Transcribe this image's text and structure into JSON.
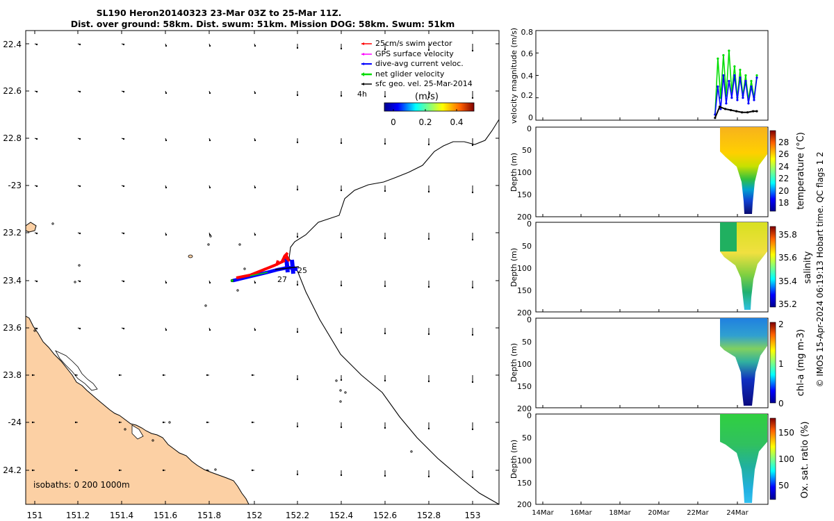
{
  "title_line1": "SL190 Heron20140323 23-Mar 03Z to 25-Mar 11Z.",
  "title_line2": "Dist. over ground: 58km. Dist. swum: 51km. Mission DOG: 58km. Swum: 51km",
  "copyright": "© IMOS 15-Apr-2024 06:19:13 Hobart time. QC flags 1  2",
  "map": {
    "lon_ticks": [
      "151",
      "151.2",
      "151.4",
      "151.6",
      "151.8",
      "152",
      "152.2",
      "152.4",
      "152.6",
      "152.8",
      "153"
    ],
    "lat_ticks": [
      "22.4",
      "22.6",
      "22.8",
      "-23",
      "23.2",
      "23.4",
      "23.6",
      "23.8",
      "-24",
      "24.2"
    ],
    "isobaths_label": "isobaths: 0   200  1000m",
    "legend": [
      {
        "label": "25cm/s swim vector",
        "color": "#ff0000"
      },
      {
        "label": "GPS surface velocity",
        "color": "#ff00ff"
      },
      {
        "label": "dive-avg current veloc.",
        "color": "#0000ff"
      },
      {
        "label": "net glider velocity",
        "color": "#00dd00"
      },
      {
        "label": "sfc geo. vel. 25-Mar-2014",
        "color": "#000000"
      }
    ],
    "four_h_label": "4h",
    "colorbar_title": "(m/s)",
    "colorbar_ticks": [
      "0",
      "0.2",
      "0.4"
    ],
    "track_labels": [
      "25",
      "27"
    ],
    "land_color": "#fcd0a4"
  },
  "chart_data": [
    {
      "type": "line",
      "panel": "velocity",
      "ylabel": "velocity magnitude (m/s)",
      "ylim": [
        0,
        0.8
      ],
      "yticks": [
        "0",
        "0.2",
        "0.4",
        "0.6",
        "0.8"
      ],
      "xlim_days": [
        13.5,
        26
      ],
      "series": [
        {
          "name": "net glider velocity",
          "color": "#00dd00",
          "x": [
            23.15,
            23.3,
            23.45,
            23.6,
            23.75,
            23.9,
            24.05,
            24.2,
            24.35,
            24.5,
            24.65,
            24.8,
            24.95,
            25.1,
            25.25,
            25.4
          ],
          "values": [
            0.05,
            0.55,
            0.2,
            0.58,
            0.22,
            0.62,
            0.25,
            0.48,
            0.2,
            0.45,
            0.22,
            0.4,
            0.18,
            0.35,
            0.2,
            0.4
          ]
        },
        {
          "name": "dive-avg current veloc.",
          "color": "#0000ff",
          "x": [
            23.15,
            23.3,
            23.45,
            23.6,
            23.75,
            23.9,
            24.05,
            24.2,
            24.35,
            24.5,
            24.65,
            24.8,
            24.95,
            25.1,
            25.25,
            25.4
          ],
          "values": [
            0.05,
            0.3,
            0.1,
            0.4,
            0.15,
            0.35,
            0.2,
            0.4,
            0.18,
            0.38,
            0.2,
            0.35,
            0.15,
            0.3,
            0.18,
            0.38
          ]
        },
        {
          "name": "sfc geo. vel.",
          "color": "#000000",
          "x": [
            23.15,
            23.4,
            23.7,
            24.0,
            24.3,
            24.6,
            24.9,
            25.2,
            25.4
          ],
          "values": [
            0.02,
            0.12,
            0.1,
            0.09,
            0.08,
            0.07,
            0.07,
            0.08,
            0.08
          ]
        }
      ]
    },
    {
      "type": "heatmap",
      "panel": "temperature",
      "ylabel": "Depth (m)",
      "yticks": [
        "0",
        "50",
        "100",
        "150",
        "200"
      ],
      "colorbar_label": "temperature (°C)",
      "colorbar_ticks": [
        "28",
        "26",
        "24",
        "22",
        "20",
        "18"
      ],
      "colorbar_range": [
        16.5,
        29.5
      ]
    },
    {
      "type": "heatmap",
      "panel": "salinity",
      "ylabel": "Depth (m)",
      "yticks": [
        "0",
        "50",
        "100",
        "150",
        "200"
      ],
      "colorbar_label": "salinity",
      "colorbar_ticks": [
        "35.8",
        "35.6",
        "35.4",
        "35.2"
      ],
      "colorbar_range": [
        35.13,
        35.87
      ]
    },
    {
      "type": "heatmap",
      "panel": "chl-a",
      "ylabel": "Depth (m)",
      "yticks": [
        "0",
        "50",
        "100",
        "150",
        "200"
      ],
      "colorbar_label": "chl-a (mg m-3)",
      "colorbar_ticks": [
        "2",
        "1",
        "0"
      ],
      "colorbar_range": [
        0,
        2
      ]
    },
    {
      "type": "heatmap",
      "panel": "oxygen",
      "ylabel": "Depth (m)",
      "yticks": [
        "0",
        "50",
        "100",
        "150",
        "200"
      ],
      "colorbar_label": "Ox. sat. ratio (%)",
      "colorbar_ticks": [
        "150",
        "100",
        "50"
      ],
      "colorbar_range": [
        20,
        175
      ]
    },
    {
      "type": "axis",
      "panel": "time-axis",
      "xticks": [
        "14Mar",
        "16Mar",
        "18Mar",
        "20Mar",
        "22Mar",
        "24Mar"
      ]
    }
  ]
}
